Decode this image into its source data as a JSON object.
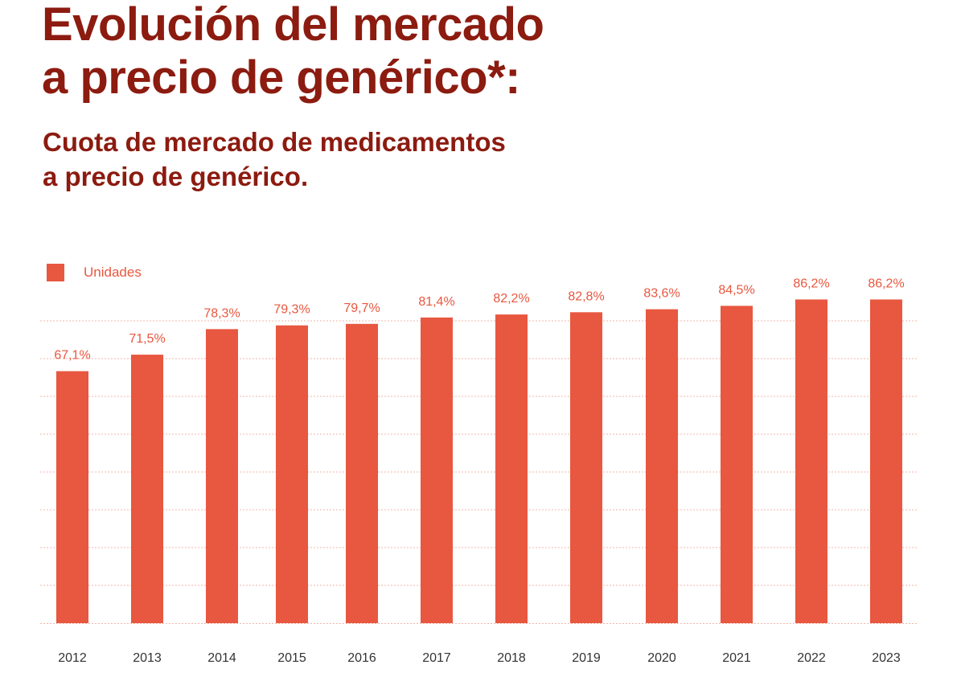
{
  "header": {
    "title_line1": "Evolución del mercado",
    "title_line2": "a precio de genérico*:",
    "subtitle_line1": "Cuota de mercado de medicamentos",
    "subtitle_line2": "a precio de genérico."
  },
  "legend": {
    "label": "Unidades"
  },
  "colors": {
    "bar": "#e8573f",
    "title": "#8c1b10",
    "grid": "#f3b5a8"
  },
  "chart_data": {
    "type": "bar",
    "categories": [
      "2012",
      "2013",
      "2014",
      "2015",
      "2016",
      "2017",
      "2018",
      "2019",
      "2020",
      "2021",
      "2022",
      "2023"
    ],
    "series": [
      {
        "name": "Unidades",
        "values": [
          67.1,
          71.5,
          78.3,
          79.3,
          79.7,
          81.4,
          82.2,
          82.8,
          83.6,
          84.5,
          86.2,
          86.2
        ],
        "labels": [
          "67,1%",
          "71,5%",
          "78,3%",
          "79,3%",
          "79,7%",
          "81,4%",
          "82,2%",
          "82,8%",
          "83,6%",
          "84,5%",
          "86,2%",
          "86,2%"
        ]
      }
    ],
    "ylim": [
      0,
      90
    ],
    "grid": true,
    "legend_position": "top-left",
    "xlabel": "",
    "ylabel": ""
  }
}
